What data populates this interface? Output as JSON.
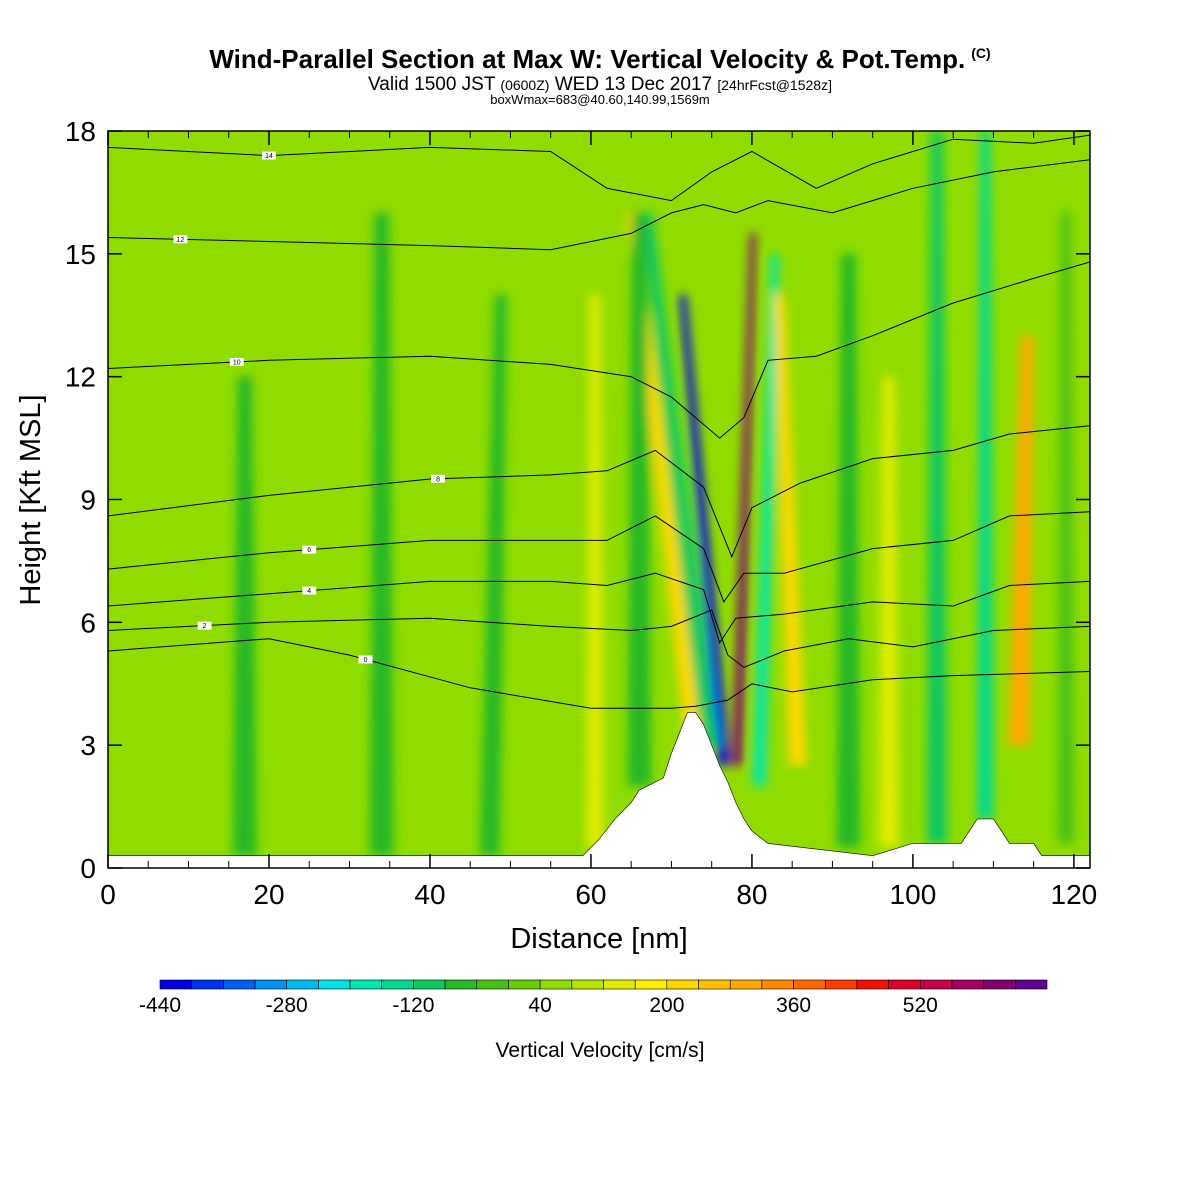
{
  "header": {
    "title": "Wind-Parallel Section at Max W: Vertical Velocity & Pot.Temp.",
    "title_mark": "(C)",
    "subtitle_valid": "Valid 1500 JST",
    "subtitle_zulu": "(0600Z)",
    "subtitle_date": "WED 13 Dec 2017",
    "subtitle_fcst": "[24hrFcst@1528z]",
    "info_line": "boxWmax=683@40.60,140.99,1569m"
  },
  "chart_data": {
    "type": "heatmap",
    "title": "Wind-Parallel Section at Max W: Vertical Velocity & Pot.Temp.",
    "xlabel": "Distance [nm]",
    "ylabel": "Height [Kft MSL]",
    "xlim": [
      0,
      122
    ],
    "ylim": [
      0,
      18
    ],
    "x_ticks": [
      0,
      20,
      40,
      60,
      80,
      100,
      120
    ],
    "y_ticks": [
      0,
      3,
      6,
      9,
      12,
      15,
      18
    ],
    "background_level": 40,
    "colorbar": {
      "title": "Vertical Velocity [cm/s]",
      "labels": [
        -440,
        -280,
        -120,
        40,
        200,
        360,
        520
      ],
      "levels": [
        -440,
        -400,
        -360,
        -320,
        -280,
        -240,
        -200,
        -160,
        -120,
        -80,
        -40,
        0,
        40,
        80,
        120,
        160,
        200,
        240,
        280,
        320,
        360,
        400,
        440,
        480,
        520,
        560,
        600,
        640
      ],
      "colors": [
        "#0000e6",
        "#0030f0",
        "#0060f0",
        "#0090f0",
        "#00b8f0",
        "#00e0e6",
        "#00e6b0",
        "#00d890",
        "#10c860",
        "#28b828",
        "#48c018",
        "#68cc00",
        "#90dc00",
        "#b8e400",
        "#e0ec00",
        "#fff000",
        "#ffd800",
        "#ffc000",
        "#ffa800",
        "#ff8800",
        "#ff6600",
        "#ff3c00",
        "#f01000",
        "#dc0028",
        "#c40048",
        "#a00060",
        "#800070",
        "#600090"
      ]
    },
    "terrain": [
      {
        "x": 0,
        "h": 0.3
      },
      {
        "x": 59,
        "h": 0.3
      },
      {
        "x": 61,
        "h": 0.7
      },
      {
        "x": 63,
        "h": 1.2
      },
      {
        "x": 65,
        "h": 1.6
      },
      {
        "x": 66,
        "h": 1.9
      },
      {
        "x": 69,
        "h": 2.2
      },
      {
        "x": 70,
        "h": 2.8
      },
      {
        "x": 71,
        "h": 3.3
      },
      {
        "x": 72,
        "h": 3.8
      },
      {
        "x": 73,
        "h": 3.8
      },
      {
        "x": 74,
        "h": 3.5
      },
      {
        "x": 75,
        "h": 3.0
      },
      {
        "x": 76,
        "h": 2.5
      },
      {
        "x": 77,
        "h": 2.1
      },
      {
        "x": 78,
        "h": 1.6
      },
      {
        "x": 79,
        "h": 1.2
      },
      {
        "x": 80,
        "h": 0.9
      },
      {
        "x": 82,
        "h": 0.6
      },
      {
        "x": 95,
        "h": 0.3
      },
      {
        "x": 100,
        "h": 0.6
      },
      {
        "x": 106,
        "h": 0.6
      },
      {
        "x": 107,
        "h": 0.9
      },
      {
        "x": 108,
        "h": 1.2
      },
      {
        "x": 110,
        "h": 1.2
      },
      {
        "x": 111,
        "h": 0.9
      },
      {
        "x": 112,
        "h": 0.6
      },
      {
        "x": 115,
        "h": 0.6
      },
      {
        "x": 116,
        "h": 0.3
      },
      {
        "x": 122,
        "h": 0.3
      }
    ],
    "w_bands": [
      {
        "x": 75,
        "slope": -0.45,
        "hmin": 2.5,
        "hmax": 14,
        "width": 1.4,
        "value": -440
      },
      {
        "x": 78.7,
        "slope": 0.15,
        "hmin": 2.5,
        "hmax": 15.5,
        "width": 1.2,
        "value": 600
      },
      {
        "x": 73,
        "slope": -0.6,
        "hmin": 3,
        "hmax": 16,
        "width": 2.2,
        "value": -120
      },
      {
        "x": 81.5,
        "slope": 0.15,
        "hmin": 2,
        "hmax": 15,
        "width": 1.6,
        "value": -200
      },
      {
        "x": 71,
        "slope": -0.6,
        "hmin": 3.3,
        "hmax": 16,
        "width": 2.0,
        "value": 200
      },
      {
        "x": 85,
        "slope": -0.2,
        "hmin": 2.5,
        "hmax": 14,
        "width": 2.2,
        "value": 200
      },
      {
        "x": 92,
        "slope": 0,
        "hmin": 0.5,
        "hmax": 15,
        "width": 3.0,
        "value": -80
      },
      {
        "x": 97,
        "slope": 0,
        "hmin": 0.5,
        "hmax": 12,
        "width": 2.5,
        "value": 120
      },
      {
        "x": 103,
        "slope": 0,
        "hmin": 0.6,
        "hmax": 18,
        "width": 2.5,
        "value": -120
      },
      {
        "x": 109,
        "slope": 0,
        "hmin": 1.2,
        "hmax": 18,
        "width": 2.0,
        "value": -160
      },
      {
        "x": 113.5,
        "slope": 0.1,
        "hmin": 3,
        "hmax": 13,
        "width": 2.6,
        "value": 280
      },
      {
        "x": 119,
        "slope": 0,
        "hmin": 0.6,
        "hmax": 16,
        "width": 2.0,
        "value": -40
      },
      {
        "x": 60.5,
        "slope": 0,
        "hmin": 0.5,
        "hmax": 14,
        "width": 2.2,
        "value": 120
      },
      {
        "x": 66,
        "slope": 0,
        "hmin": 2,
        "hmax": 16,
        "width": 3.0,
        "value": -80
      },
      {
        "x": 48,
        "slope": 0.1,
        "hmin": 0.3,
        "hmax": 14,
        "width": 2.5,
        "value": -80
      },
      {
        "x": 17,
        "slope": 0,
        "hmin": 0.3,
        "hmax": 12,
        "width": 3.0,
        "value": -80
      },
      {
        "x": 34,
        "slope": 0,
        "hmin": 0.3,
        "hmax": 16,
        "width": 3.0,
        "value": -80
      }
    ],
    "isentropes": [
      {
        "label": "0",
        "label_x": 32,
        "pts": [
          [
            0,
            5.3
          ],
          [
            20,
            5.6
          ],
          [
            30,
            5.2
          ],
          [
            45,
            4.4
          ],
          [
            60,
            3.9
          ],
          [
            70,
            3.9
          ],
          [
            73,
            3.95
          ],
          [
            77,
            4.1
          ],
          [
            80,
            4.5
          ],
          [
            85,
            4.3
          ],
          [
            95,
            4.6
          ],
          [
            105,
            4.7
          ],
          [
            122,
            4.8
          ]
        ]
      },
      {
        "label": "2",
        "label_x": 12,
        "pts": [
          [
            0,
            5.8
          ],
          [
            20,
            6.0
          ],
          [
            40,
            6.1
          ],
          [
            55,
            5.9
          ],
          [
            65,
            5.8
          ],
          [
            70,
            5.9
          ],
          [
            75,
            6.3
          ],
          [
            77,
            5.2
          ],
          [
            79,
            4.9
          ],
          [
            84,
            5.3
          ],
          [
            92,
            5.6
          ],
          [
            100,
            5.4
          ],
          [
            110,
            5.8
          ],
          [
            122,
            5.9
          ]
        ]
      },
      {
        "label": "4",
        "label_x": 25,
        "pts": [
          [
            0,
            6.4
          ],
          [
            20,
            6.7
          ],
          [
            40,
            7.0
          ],
          [
            55,
            7.0
          ],
          [
            62,
            6.9
          ],
          [
            68,
            7.2
          ],
          [
            74,
            6.8
          ],
          [
            76,
            5.5
          ],
          [
            78,
            6.1
          ],
          [
            84,
            6.2
          ],
          [
            95,
            6.5
          ],
          [
            105,
            6.4
          ],
          [
            112,
            6.9
          ],
          [
            122,
            7.0
          ]
        ]
      },
      {
        "label": "6",
        "label_x": 25,
        "pts": [
          [
            0,
            7.3
          ],
          [
            20,
            7.7
          ],
          [
            40,
            8.0
          ],
          [
            55,
            8.0
          ],
          [
            62,
            8.0
          ],
          [
            68,
            8.6
          ],
          [
            74,
            7.8
          ],
          [
            76.5,
            6.5
          ],
          [
            79,
            7.2
          ],
          [
            84,
            7.2
          ],
          [
            95,
            7.8
          ],
          [
            105,
            8.0
          ],
          [
            112,
            8.6
          ],
          [
            122,
            8.7
          ]
        ]
      },
      {
        "label": "8",
        "label_x": 41,
        "pts": [
          [
            0,
            8.6
          ],
          [
            20,
            9.1
          ],
          [
            40,
            9.5
          ],
          [
            55,
            9.6
          ],
          [
            62,
            9.7
          ],
          [
            68,
            10.2
          ],
          [
            74,
            9.3
          ],
          [
            77.5,
            7.6
          ],
          [
            80,
            8.8
          ],
          [
            86,
            9.4
          ],
          [
            95,
            10.0
          ],
          [
            105,
            10.2
          ],
          [
            112,
            10.6
          ],
          [
            122,
            10.8
          ]
        ]
      },
      {
        "label": "10",
        "label_x": 16,
        "pts": [
          [
            0,
            12.2
          ],
          [
            20,
            12.4
          ],
          [
            40,
            12.5
          ],
          [
            55,
            12.3
          ],
          [
            65,
            12.0
          ],
          [
            70,
            11.5
          ],
          [
            76,
            10.5
          ],
          [
            79,
            11.0
          ],
          [
            82,
            12.4
          ],
          [
            88,
            12.5
          ],
          [
            95,
            13.0
          ],
          [
            105,
            13.8
          ],
          [
            115,
            14.4
          ],
          [
            122,
            14.8
          ]
        ]
      },
      {
        "label": "12",
        "label_x": 9,
        "pts": [
          [
            0,
            15.4
          ],
          [
            20,
            15.3
          ],
          [
            40,
            15.2
          ],
          [
            55,
            15.1
          ],
          [
            65,
            15.5
          ],
          [
            70,
            16.0
          ],
          [
            74,
            16.2
          ],
          [
            78,
            16.0
          ],
          [
            82,
            16.3
          ],
          [
            90,
            16.0
          ],
          [
            100,
            16.6
          ],
          [
            110,
            17.0
          ],
          [
            122,
            17.3
          ]
        ]
      },
      {
        "label": "14",
        "label_x": 20,
        "pts": [
          [
            0,
            17.6
          ],
          [
            20,
            17.4
          ],
          [
            40,
            17.6
          ],
          [
            55,
            17.5
          ],
          [
            62,
            16.6
          ],
          [
            70,
            16.3
          ],
          [
            75,
            17.0
          ],
          [
            80,
            17.5
          ],
          [
            88,
            16.6
          ],
          [
            95,
            17.2
          ],
          [
            105,
            17.8
          ],
          [
            115,
            17.7
          ],
          [
            122,
            17.9
          ]
        ]
      }
    ]
  }
}
